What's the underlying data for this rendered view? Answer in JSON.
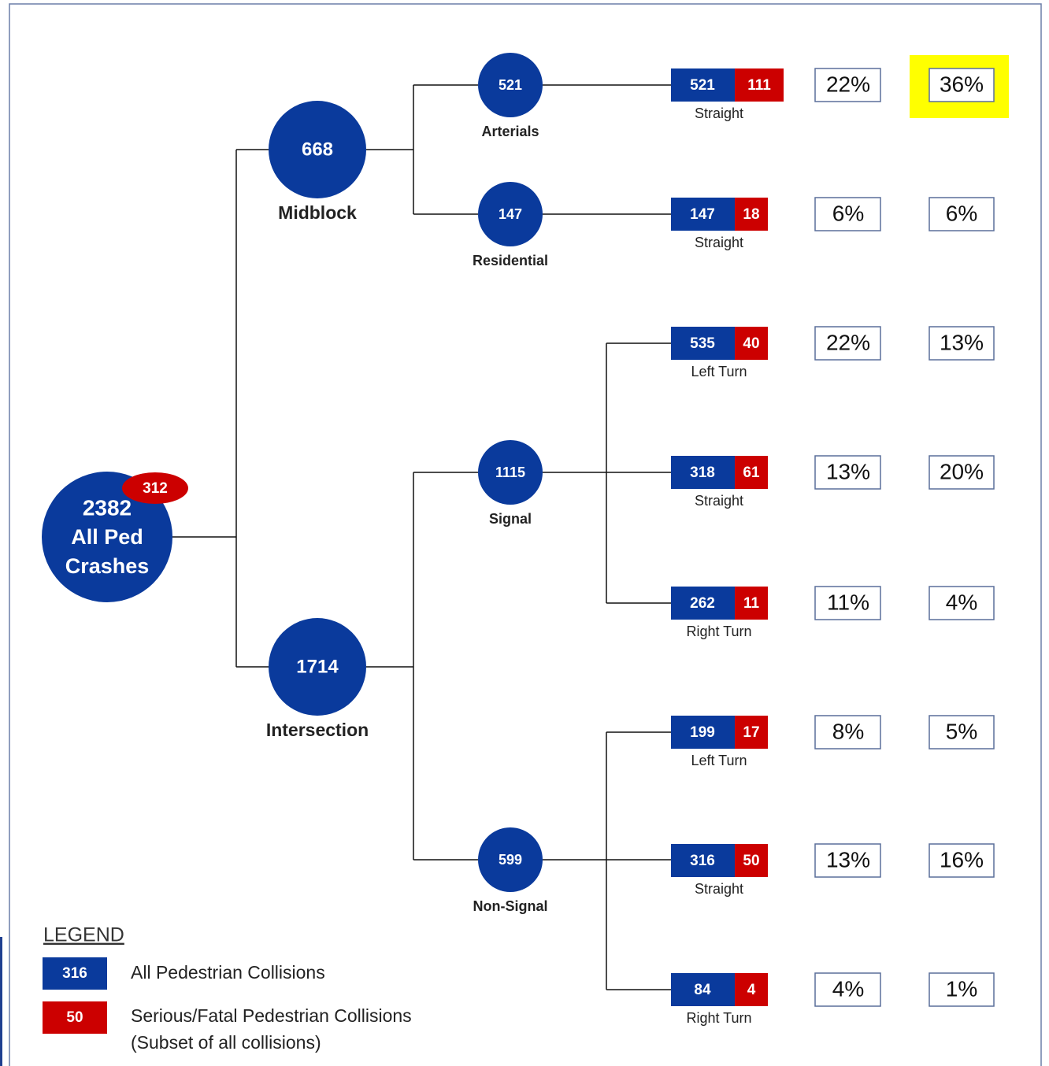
{
  "root": {
    "total": "2382",
    "serious": "312",
    "label": [
      "All Ped",
      "Crashes"
    ]
  },
  "level1": [
    {
      "total": "668",
      "label": "Midblock"
    },
    {
      "total": "1714",
      "label": "Intersection"
    }
  ],
  "level2": [
    {
      "total": "521",
      "label": "Arterials"
    },
    {
      "total": "147",
      "label": "Residential"
    },
    {
      "total": "1115",
      "label": "Signal"
    },
    {
      "total": "599",
      "label": "Non-Signal"
    }
  ],
  "leaves": [
    {
      "total": "521",
      "serious": "111",
      "label": "Straight",
      "share_all": "22%",
      "share_serious": "36%"
    },
    {
      "total": "147",
      "serious": "18",
      "label": "Straight",
      "share_all": "6%",
      "share_serious": "6%"
    },
    {
      "total": "535",
      "serious": "40",
      "label": "Left Turn",
      "share_all": "22%",
      "share_serious": "13%"
    },
    {
      "total": "318",
      "serious": "61",
      "label": "Straight",
      "share_all": "13%",
      "share_serious": "20%"
    },
    {
      "total": "262",
      "serious": "11",
      "label": "Right Turn",
      "share_all": "11%",
      "share_serious": "4%"
    },
    {
      "total": "199",
      "serious": "17",
      "label": "Left Turn",
      "share_all": "8%",
      "share_serious": "5%"
    },
    {
      "total": "316",
      "serious": "50",
      "label": "Straight",
      "share_all": "13%",
      "share_serious": "16%"
    },
    {
      "total": "84",
      "serious": "4",
      "label": "Right Turn",
      "share_all": "4%",
      "share_serious": "1%"
    }
  ],
  "legend": {
    "title": "LEGEND",
    "all_sample": "316",
    "all_label": "All Pedestrian Collisions",
    "serious_sample": "50",
    "serious_label": "Serious/Fatal Pedestrian Collisions",
    "serious_note": "(Subset of all collisions)"
  }
}
